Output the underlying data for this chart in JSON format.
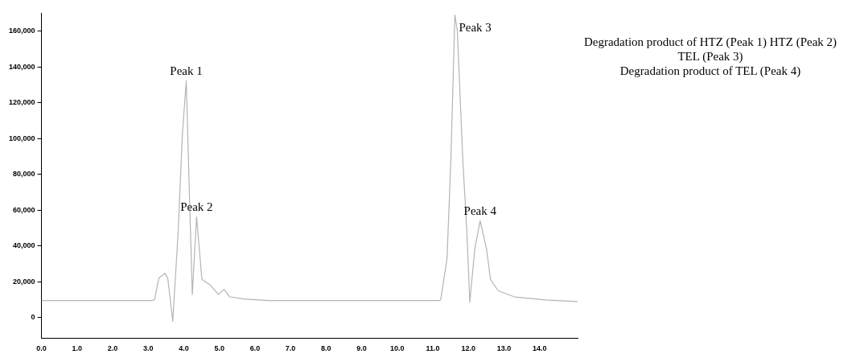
{
  "chart_data": {
    "type": "line",
    "x": [
      0,
      3.1,
      3.18,
      3.3,
      3.47,
      3.55,
      3.69,
      3.84,
      3.96,
      4.07,
      4.16,
      4.24,
      4.36,
      4.51,
      4.73,
      4.98,
      5.13,
      5.29,
      5.73,
      6.4,
      11.18,
      11.22,
      11.4,
      11.51,
      11.62,
      11.69,
      11.84,
      11.96,
      12.04,
      12.18,
      12.33,
      12.51,
      12.62,
      12.84,
      13.29,
      14.18,
      15.07
    ],
    "series": [
      {
        "color": "#b4b4b4",
        "values": [
          9400,
          9400,
          10000,
          22000,
          24700,
          22000,
          -2100,
          46800,
          102000,
          132300,
          68000,
          12800,
          56200,
          21300,
          18300,
          12800,
          15700,
          11500,
          10200,
          9400,
          9400,
          9800,
          32800,
          89400,
          169000,
          160000,
          89400,
          46800,
          8500,
          38300,
          54000,
          38300,
          21300,
          14900,
          11500,
          9800,
          8900
        ]
      }
    ],
    "xlim": [
      0,
      15.07
    ],
    "xticks": [
      {
        "value": 0,
        "label": "0.0"
      },
      {
        "value": 1,
        "label": "1.0"
      },
      {
        "value": 2,
        "label": "2.0"
      },
      {
        "value": 3,
        "label": "3.0"
      },
      {
        "value": 4,
        "label": "4.0"
      },
      {
        "value": 5,
        "label": "5.0"
      },
      {
        "value": 6,
        "label": "6.0"
      },
      {
        "value": 7,
        "label": "7.0"
      },
      {
        "value": 8,
        "label": "8.0"
      },
      {
        "value": 9,
        "label": "9.0"
      },
      {
        "value": 10,
        "label": "10.0"
      },
      {
        "value": 11,
        "label": "11.0"
      },
      {
        "value": 12,
        "label": "12.0"
      },
      {
        "value": 13,
        "label": "13.0"
      },
      {
        "value": 14,
        "label": "14.0"
      }
    ],
    "ylim": [
      -11500,
      170000
    ],
    "yticks": [
      0,
      {
        "value": 20000,
        "label": "20,000"
      },
      {
        "value": 40000,
        "label": "40,000"
      },
      {
        "value": 60000,
        "label": "60,000"
      },
      {
        "value": 80000,
        "label": "80,000"
      },
      {
        "value": 100000,
        "label": "100,000"
      },
      {
        "value": 120000,
        "label": "120,000"
      },
      {
        "value": 140000,
        "label": "140,000"
      },
      {
        "value": 160000,
        "label": "160,000"
      }
    ],
    "grid": false,
    "legend": false,
    "marker": "none",
    "line_style": "solid",
    "annotations": [
      {
        "text": "Peak 1",
        "x": 4.07,
        "y": 132300
      },
      {
        "text": "Peak 2",
        "x": 4.36,
        "y": 56200
      },
      {
        "text": "Peak 3",
        "x": 11.62,
        "y": 169000
      },
      {
        "text": "Peak 4",
        "x": 12.33,
        "y": 54000
      },
      "Degradation product of HTZ (Peak 1) HTZ (Peak 2)",
      "TEL (Peak 3)",
      "Degradation product of TEL (Peak 4)"
    ]
  }
}
